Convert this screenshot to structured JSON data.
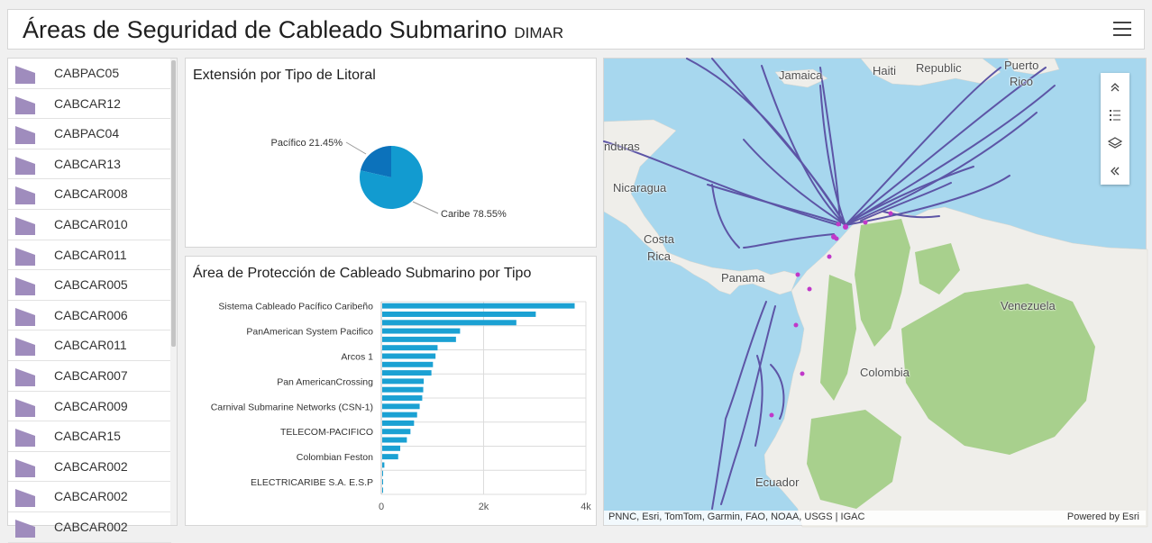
{
  "header": {
    "title": "Áreas de Seguridad de Cableado Submarino",
    "subtitle": "DIMAR"
  },
  "list": {
    "swatch_color": "#9f8cbd",
    "items": [
      "CABPAC05",
      "CABCAR12",
      "CABPAC04",
      "CABCAR13",
      "CABCAR008",
      "CABCAR010",
      "CABCAR011",
      "CABCAR005",
      "CABCAR006",
      "CABCAR011",
      "CABCAR007",
      "CABCAR009",
      "CABCAR15",
      "CABCAR002",
      "CABCAR002",
      "CABCAR002"
    ]
  },
  "pie_panel": {
    "title": "Extensión por Tipo de Litoral"
  },
  "bar_panel": {
    "title": "Área de Protección de Cableado Submarino por Tipo"
  },
  "chart_data": [
    {
      "type": "pie",
      "title": "Extensión por Tipo de Litoral",
      "slices": [
        {
          "label": "Caribe",
          "value": 78.55,
          "display": "Caribe 78.55%",
          "color": "#129bd0"
        },
        {
          "label": "Pacífico",
          "value": 21.45,
          "display": "Pacífico 21.45%",
          "color": "#0c72bb"
        }
      ]
    },
    {
      "type": "bar",
      "orientation": "horizontal",
      "title": "Área de Protección de Cableado Submarino por Tipo",
      "categories": [
        "Sistema Cableado Pacífico Caribeño",
        "",
        "",
        "PanAmerican System Pacifico",
        "",
        "",
        "Arcos 1",
        "",
        "",
        "Pan AmericanCrossing",
        "",
        "",
        "Carnival Submarine Networks (CSN-1)",
        "",
        "",
        "TELECOM-PACIFICO",
        "",
        "",
        "Colombian Feston",
        "",
        "",
        "ELECTRICARIBE S.A. E.S.P",
        ""
      ],
      "values": [
        3780,
        3020,
        2640,
        1540,
        1460,
        1100,
        1060,
        1010,
        980,
        830,
        820,
        800,
        750,
        700,
        640,
        570,
        500,
        370,
        330,
        60,
        30,
        20,
        10
      ],
      "xlim": [
        0,
        4000
      ],
      "xticks": [
        "0",
        "2k",
        "4k"
      ],
      "color": "#1ba1d3",
      "grid": true
    }
  ],
  "map": {
    "places": [
      "Jamaica",
      "Haiti",
      "Republic",
      "Puerto",
      "Rico",
      "nduras",
      "Nicaragua",
      "Costa",
      "Rica",
      "Panama",
      "Venezuela",
      "Colombia",
      "Ecuador"
    ],
    "attribution_left": "PNNC, Esri, TomTom, Garmin, FAO, NOAA, USGS | IGAC",
    "attribution_right": "Powered by Esri",
    "ocean_color": "#a7d7ee",
    "land_color": "#efeeea",
    "park_color": "#a8d08d",
    "cable_color": "#5d55a6",
    "site_color": "#c038c9"
  }
}
